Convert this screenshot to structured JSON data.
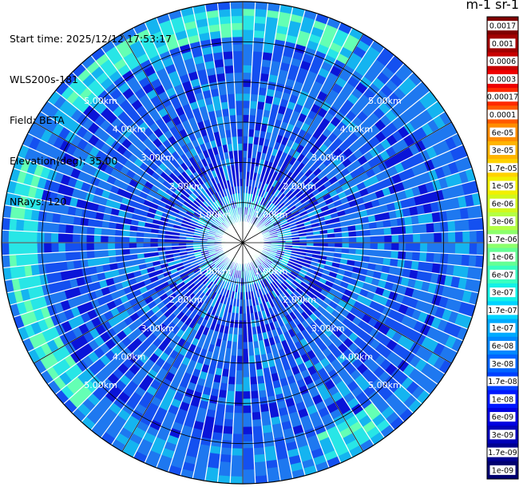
{
  "header": {
    "start_time": "Start time: 2025/12/12 17:53:17",
    "instrument": "WLS200s-181",
    "field": "Field: BETA",
    "elevation": "Elevation(deg): 35.00",
    "nrays": "NRays: 120"
  },
  "colorbar": {
    "title": "m-1 sr-1",
    "ticks": [
      "0.0017",
      "0.001",
      "0.0006",
      "0.0003",
      "0.00017",
      "0.0001",
      "6e-05",
      "3e-05",
      "1.7e-05",
      "1e-05",
      "6e-06",
      "3e-06",
      "1.7e-06",
      "1e-06",
      "6e-07",
      "3e-07",
      "1.7e-07",
      "1e-07",
      "6e-08",
      "3e-08",
      "1.7e-08",
      "1e-08",
      "6e-09",
      "3e-09",
      "1.7e-09",
      "1e-09"
    ],
    "colors": [
      "#800000",
      "#a00000",
      "#c80000",
      "#ee0000",
      "#ff2a00",
      "#ff5a00",
      "#ff8c00",
      "#ffb400",
      "#ffd200",
      "#f2f000",
      "#d2f81c",
      "#b4ff44",
      "#8cff6c",
      "#64ff94",
      "#38ffc0",
      "#14f0e6",
      "#00d4ff",
      "#00aaff",
      "#0088ff",
      "#0064ff",
      "#0040ff",
      "#0018ff",
      "#0000e0",
      "#0000b8",
      "#000090",
      "#000070"
    ]
  },
  "chart_data": {
    "type": "ppi",
    "field": "BETA",
    "units": "m-1 sr-1",
    "elevation_deg": 35.0,
    "nrays": 120,
    "range_rings_km": [
      1.0,
      2.0,
      3.0,
      4.0,
      5.0
    ],
    "range_ring_labels": [
      "1.00km",
      "2.00km",
      "3.00km",
      "4.00km",
      "5.00km"
    ],
    "max_range_km": 6.0,
    "dominant_value": "3e-08",
    "enhanced_band": {
      "value": "1.7e-07",
      "range_km": [
        5.2,
        5.8
      ],
      "azimuth_sectors_deg": [
        [
          310,
          30
        ],
        [
          225,
          290
        ],
        [
          140,
          160
        ]
      ]
    },
    "colorbar_ticks": [
      "0.0017",
      "0.001",
      "0.0006",
      "0.0003",
      "0.00017",
      "0.0001",
      "6e-05",
      "3e-05",
      "1.7e-05",
      "1e-05",
      "6e-06",
      "3e-06",
      "1.7e-06",
      "1e-06",
      "6e-07",
      "3e-07",
      "1.7e-07",
      "1e-07",
      "6e-08",
      "3e-08",
      "1.7e-08",
      "1e-08",
      "6e-09",
      "3e-09",
      "1.7e-09",
      "1e-09"
    ]
  }
}
